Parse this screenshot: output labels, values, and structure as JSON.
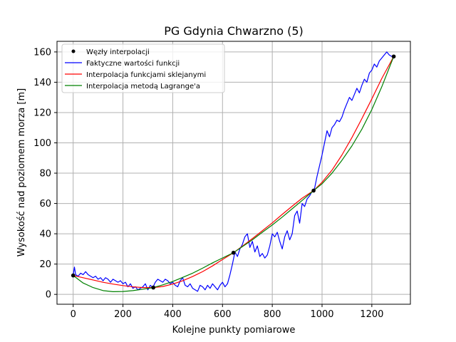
{
  "chart_data": {
    "type": "line",
    "title": "PG Gdynia Chwarzno (5)",
    "xlabel": "Kolejne punkty pomiarowe",
    "ylabel": "Wysokość nad poziomem morza [m]",
    "xlim": [
      -65,
      1355
    ],
    "ylim": [
      -6.5,
      167
    ],
    "xticks": [
      0,
      200,
      400,
      600,
      800,
      1000,
      1200
    ],
    "yticks": [
      0,
      20,
      40,
      60,
      80,
      100,
      120,
      140,
      160
    ],
    "grid": true,
    "legend_position": "top-left",
    "colors": {
      "nodes": "#000000",
      "actual": "#0000ff",
      "spline": "#ff0000",
      "lagrange": "#008000",
      "grid": "#b0b0b0"
    },
    "series": [
      {
        "name": "Węzły interpolacji",
        "kind": "scatter",
        "x": [
          0,
          322,
          644,
          966,
          1288
        ],
        "y": [
          12.5,
          4.5,
          27.5,
          68.5,
          157
        ]
      },
      {
        "name": "Faktyczne wartości funkcji",
        "kind": "line",
        "x": [
          0,
          5,
          10,
          20,
          30,
          40,
          50,
          60,
          70,
          80,
          90,
          100,
          110,
          120,
          130,
          140,
          150,
          160,
          170,
          180,
          190,
          200,
          210,
          220,
          230,
          240,
          250,
          260,
          270,
          280,
          290,
          300,
          310,
          320,
          330,
          340,
          350,
          360,
          370,
          380,
          390,
          400,
          410,
          420,
          430,
          440,
          450,
          460,
          470,
          480,
          490,
          500,
          510,
          520,
          530,
          540,
          550,
          560,
          570,
          580,
          590,
          600,
          610,
          620,
          630,
          640,
          650,
          660,
          670,
          680,
          690,
          700,
          710,
          720,
          730,
          740,
          750,
          760,
          770,
          780,
          790,
          800,
          810,
          820,
          830,
          840,
          850,
          860,
          870,
          880,
          890,
          900,
          910,
          920,
          930,
          940,
          950,
          960,
          970,
          980,
          990,
          1000,
          1010,
          1020,
          1030,
          1040,
          1050,
          1060,
          1070,
          1080,
          1090,
          1100,
          1110,
          1120,
          1130,
          1140,
          1150,
          1160,
          1170,
          1180,
          1190,
          1200,
          1210,
          1220,
          1230,
          1240,
          1250,
          1260,
          1270,
          1280,
          1288
        ],
        "y": [
          12.5,
          18,
          13,
          12,
          14,
          13,
          15,
          13,
          12,
          11,
          12,
          10,
          11,
          9,
          11,
          10,
          8,
          10,
          9,
          8,
          9,
          7,
          8,
          5,
          7,
          4,
          5,
          3,
          4,
          5,
          7,
          3,
          6,
          4.5,
          8,
          10,
          9,
          8,
          10,
          9,
          7,
          8,
          6,
          5,
          9,
          11,
          6,
          5,
          7,
          4,
          3,
          2,
          6,
          5,
          3,
          6,
          4,
          7,
          5,
          3,
          6,
          8,
          5,
          7,
          13,
          20,
          28,
          25,
          30,
          33,
          38,
          40,
          31,
          35,
          28,
          32,
          25,
          27,
          24,
          26,
          32,
          40,
          38,
          41,
          35,
          30,
          38,
          42,
          36,
          40,
          52,
          55,
          47,
          60,
          58,
          63,
          65,
          68,
          70,
          78,
          85,
          92,
          100,
          108,
          104,
          110,
          112,
          115,
          114,
          117,
          122,
          126,
          130,
          128,
          132,
          136,
          133,
          138,
          142,
          140,
          146,
          148,
          152,
          150,
          154,
          156,
          158,
          160,
          158,
          157,
          157
        ]
      },
      {
        "name": "Interpolacja funkcjami sklejanymi",
        "kind": "line",
        "x": [
          0,
          40,
          80,
          120,
          160,
          200,
          240,
          280,
          322,
          360,
          400,
          440,
          480,
          520,
          560,
          600,
          644,
          680,
          720,
          760,
          800,
          840,
          880,
          920,
          966,
          1000,
          1040,
          1080,
          1120,
          1160,
          1200,
          1240,
          1288
        ],
        "y": [
          12.5,
          11,
          9.5,
          8,
          6.8,
          5.8,
          5,
          4.5,
          4.5,
          5.2,
          6.8,
          9,
          11.8,
          15,
          18.8,
          23,
          27.5,
          31.8,
          36.8,
          42,
          47.2,
          52.8,
          58.2,
          63.5,
          68.5,
          74,
          82,
          92,
          103.5,
          116,
          129,
          142.5,
          157
        ]
      },
      {
        "name": "Interpolacja metodą Lagrange'a",
        "kind": "line",
        "x": [
          0,
          40,
          80,
          120,
          160,
          200,
          240,
          280,
          322,
          360,
          400,
          440,
          480,
          520,
          560,
          600,
          644,
          680,
          720,
          760,
          800,
          840,
          880,
          920,
          966,
          1000,
          1040,
          1080,
          1120,
          1160,
          1200,
          1240,
          1288
        ],
        "y": [
          12.5,
          7.5,
          4.5,
          2.5,
          1.8,
          1.9,
          2.5,
          3.4,
          4.5,
          6.3,
          8.5,
          11.2,
          14,
          17.3,
          20.8,
          24,
          27.5,
          31.5,
          36,
          41,
          45.8,
          51,
          56.5,
          62,
          68.5,
          73,
          80,
          88.5,
          98,
          109,
          122,
          137,
          157
        ]
      }
    ]
  }
}
